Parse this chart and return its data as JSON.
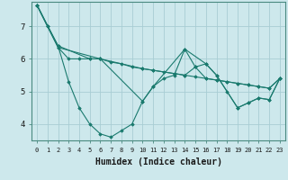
{
  "title": "",
  "xlabel": "Humidex (Indice chaleur)",
  "bg_color": "#cde8ec",
  "grid_color": "#a8cdd4",
  "line_color": "#1a7a6e",
  "xlim": [
    -0.5,
    23.5
  ],
  "ylim": [
    3.5,
    7.75
  ],
  "yticks": [
    4,
    5,
    6,
    7
  ],
  "xtick_labels": [
    "0",
    "1",
    "2",
    "3",
    "4",
    "5",
    "6",
    "7",
    "8",
    "9",
    "10",
    "11",
    "12",
    "13",
    "14",
    "15",
    "16",
    "17",
    "18",
    "19",
    "20",
    "21",
    "22",
    "23"
  ],
  "series": [
    {
      "x": [
        0,
        1,
        2,
        3,
        4,
        5,
        6,
        7,
        8,
        9,
        10,
        11,
        12,
        13,
        14,
        15,
        16,
        17,
        18,
        19,
        20,
        21,
        22,
        23
      ],
      "y": [
        7.65,
        7.0,
        6.4,
        5.3,
        4.5,
        4.0,
        3.7,
        3.6,
        3.8,
        4.0,
        4.7,
        5.15,
        5.4,
        5.5,
        6.3,
        5.75,
        5.85,
        5.5,
        5.0,
        4.5,
        4.65,
        4.8,
        4.75,
        5.4
      ]
    },
    {
      "x": [
        0,
        1,
        2,
        3,
        4,
        5,
        6,
        7,
        8,
        9,
        10,
        11,
        12,
        13,
        14,
        15,
        16,
        17,
        18,
        19,
        20,
        21,
        22,
        23
      ],
      "y": [
        7.65,
        7.0,
        6.35,
        6.0,
        6.0,
        6.0,
        6.0,
        5.9,
        5.85,
        5.75,
        5.7,
        5.65,
        5.6,
        5.55,
        5.5,
        5.45,
        5.4,
        5.35,
        5.3,
        5.25,
        5.2,
        5.15,
        5.1,
        5.4
      ]
    },
    {
      "x": [
        0,
        2,
        5,
        6,
        10,
        11,
        14,
        16,
        17,
        19,
        20,
        21,
        22,
        23
      ],
      "y": [
        7.65,
        6.4,
        6.0,
        6.0,
        4.7,
        5.15,
        6.3,
        5.85,
        5.5,
        4.5,
        4.65,
        4.8,
        4.75,
        5.4
      ]
    },
    {
      "x": [
        0,
        2,
        6,
        10,
        11,
        13,
        14,
        15,
        16,
        17,
        18,
        19,
        20,
        21,
        22,
        23
      ],
      "y": [
        7.65,
        6.35,
        6.0,
        5.7,
        5.65,
        5.55,
        5.5,
        5.75,
        5.4,
        5.35,
        5.3,
        5.25,
        5.2,
        5.15,
        5.1,
        5.4
      ]
    }
  ]
}
